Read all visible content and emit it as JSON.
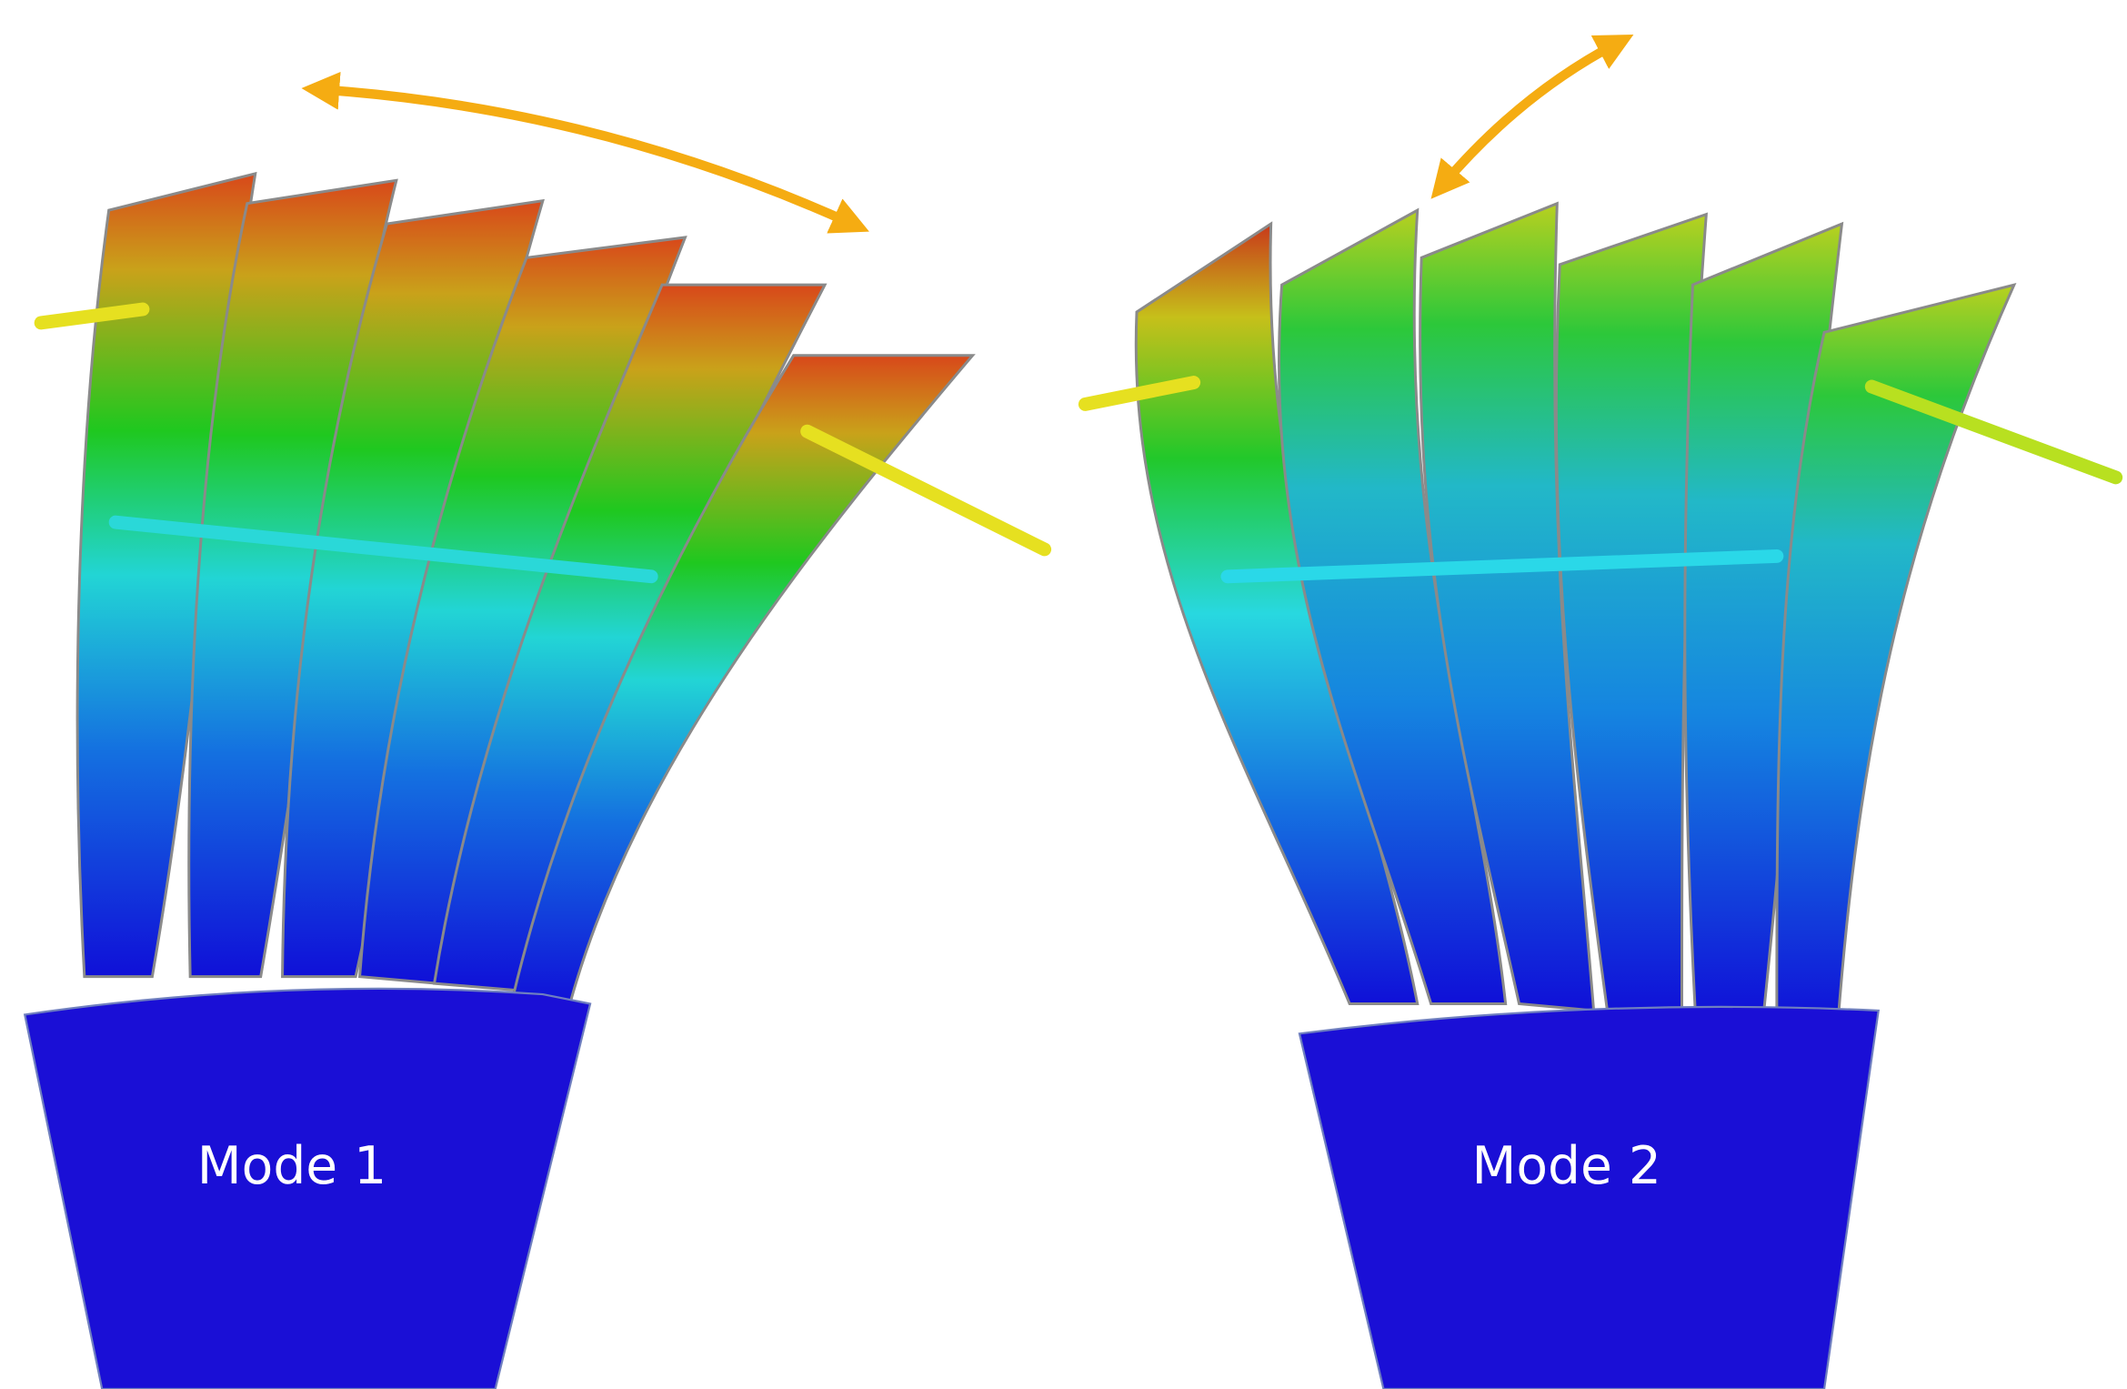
{
  "panels": [
    {
      "label": "Mode 1"
    },
    {
      "label": "Mode 2"
    }
  ]
}
